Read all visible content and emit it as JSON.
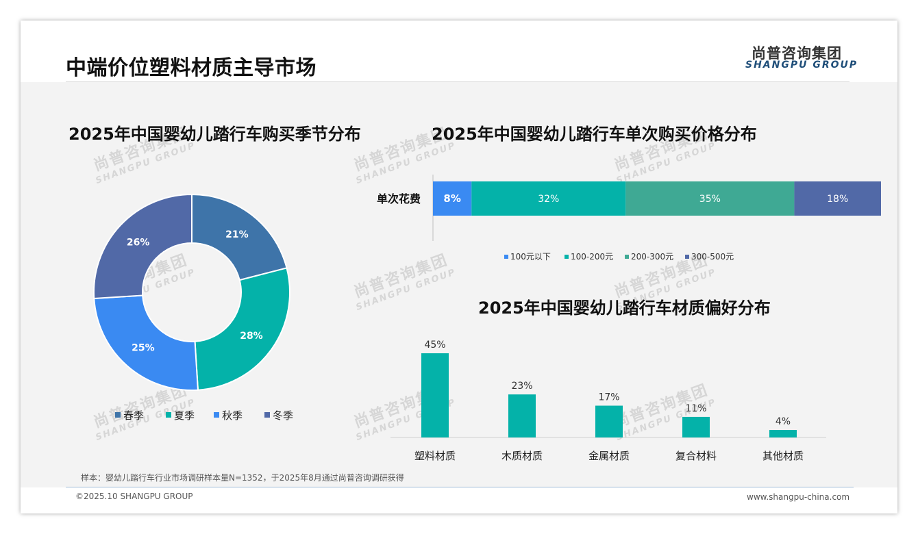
{
  "header": {
    "headline": "中端价位塑料材质主导市场",
    "logo_cn": "尚普咨询集团",
    "logo_en": "SHANGPU GROUP"
  },
  "watermark": {
    "cn": "尚普咨询集团",
    "en": "SHANGPU GROUP"
  },
  "colors": {
    "spring": "#3e74a9",
    "summer": "#04b2a9",
    "autumn": "#3a8af2",
    "winter": "#5169a7",
    "price_100": "#3a8af2",
    "price_100_200": "#04b2a9",
    "price_200_300": "#3fa994",
    "price_300_500": "#5169a7",
    "material_bar": "#04b2a9"
  },
  "chart_data": [
    {
      "type": "pie",
      "title": "2025年中国婴幼儿踏行车购买季节分布",
      "donut": true,
      "legend_position": "bottom",
      "categories": [
        "春季",
        "夏季",
        "秋季",
        "冬季"
      ],
      "values": [
        21,
        28,
        25,
        26
      ],
      "labels": [
        "21%",
        "28%",
        "25%",
        "26%"
      ]
    },
    {
      "type": "bar",
      "orientation": "horizontal",
      "stacked": true,
      "title": "2025年中国婴幼儿踏行车单次购买价格分布",
      "categories": [
        "单次花费"
      ],
      "legend_position": "bottom",
      "series": [
        {
          "name": "100元以下",
          "values": [
            8
          ],
          "label": "8%"
        },
        {
          "name": "100-200元",
          "values": [
            32
          ],
          "label": "32%"
        },
        {
          "name": "200-300元",
          "values": [
            35
          ],
          "label": "35%"
        },
        {
          "name": "300-500元",
          "values": [
            18
          ],
          "label": "18%"
        }
      ]
    },
    {
      "type": "bar",
      "title": "2025年中国婴幼儿踏行车材质偏好分布",
      "categories": [
        "塑料材质",
        "木质材质",
        "金属材质",
        "复合材料",
        "其他材质"
      ],
      "values": [
        45,
        23,
        17,
        11,
        4
      ],
      "labels": [
        "45%",
        "23%",
        "17%",
        "11%",
        "4%"
      ]
    }
  ],
  "footer": {
    "sample": "样本：婴幼儿踏行车行业市场调研样本量N=1352，于2025年8月通过尚普咨询调研获得",
    "copyright": "©2025.10 SHANGPU GROUP",
    "website": "www.shangpu-china.com"
  }
}
